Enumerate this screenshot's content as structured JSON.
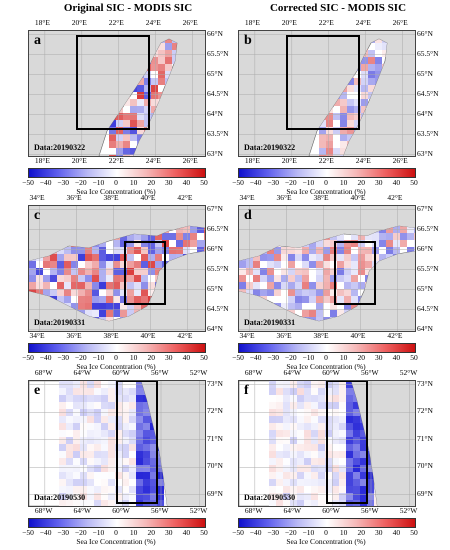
{
  "titles": {
    "left": "Original SIC - MODIS SIC",
    "right": "Corrected SIC - MODIS SIC"
  },
  "colorbar": {
    "ticks": [
      "−50",
      "−40",
      "−30",
      "−20",
      "−10",
      "0",
      "10",
      "20",
      "30",
      "40",
      "50"
    ],
    "title": "Sea Ice Concentration (%)",
    "colors": [
      "#1010cc",
      "#ffffff",
      "#cc1010"
    ]
  },
  "rows": [
    {
      "labels": [
        "a",
        "b"
      ],
      "date": "Data:20190322",
      "xticks": [
        "18°E",
        "20°E",
        "22°E",
        "24°E",
        "26°E"
      ],
      "yticks": [
        "66°N",
        "65.5°N",
        "65°N",
        "64.5°N",
        "64°N",
        "63.5°N",
        "63°N"
      ]
    },
    {
      "labels": [
        "c",
        "d"
      ],
      "date": "Data:20190331",
      "xticks": [
        "34°E",
        "36°E",
        "38°E",
        "40°E",
        "42°E"
      ],
      "yticks": [
        "67°N",
        "66.5°N",
        "66°N",
        "65.5°N",
        "65°N",
        "64.5°N",
        "64°N"
      ]
    },
    {
      "labels": [
        "e",
        "f"
      ],
      "date": "Data:20190530",
      "xticks": [
        "68°W",
        "64°W",
        "60°W",
        "56°W",
        "52°W"
      ],
      "yticks": [
        "73°N",
        "72°N",
        "71°N",
        "70°N",
        "69°N"
      ]
    }
  ]
}
